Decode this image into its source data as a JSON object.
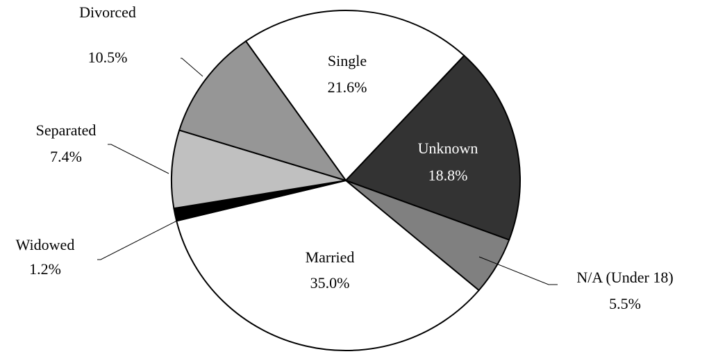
{
  "chart_data": {
    "type": "pie",
    "categories": [
      "Single",
      "Unknown",
      "N/A  (Under 18)",
      "Married",
      "Widowed",
      "Separated",
      "Divorced"
    ],
    "values": [
      21.6,
      18.8,
      5.5,
      35.0,
      1.2,
      7.4,
      10.5
    ],
    "value_labels": [
      "21.6%",
      "18.8%",
      "5.5%",
      "35.0%",
      "1.2%",
      "7.4%",
      "10.5%"
    ],
    "colors": [
      "#ffffff",
      "#333333",
      "#808080",
      "#ffffff",
      "#000000",
      "#c0c0c0",
      "#969696"
    ]
  }
}
